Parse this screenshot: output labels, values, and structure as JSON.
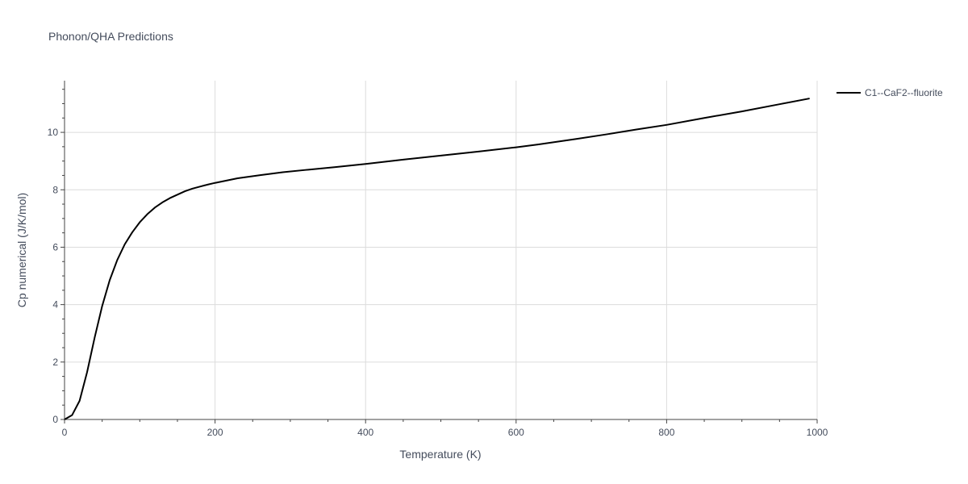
{
  "chart_data": {
    "type": "line",
    "title": "Phonon/QHA Predictions",
    "xlabel": "Temperature (K)",
    "ylabel": "Cp numerical (J/K/mol)",
    "xlim": [
      0,
      1000
    ],
    "ylim": [
      0,
      11.8
    ],
    "xticks": [
      0,
      200,
      400,
      600,
      800,
      1000
    ],
    "yticks": [
      0,
      2,
      4,
      6,
      8,
      10
    ],
    "grid": true,
    "legend_position": "top-right",
    "series": [
      {
        "name": "C1--CaF2--fluorite",
        "color": "#000000",
        "x": [
          0,
          10,
          20,
          30,
          40,
          50,
          60,
          70,
          80,
          90,
          100,
          110,
          120,
          130,
          140,
          150,
          160,
          170,
          180,
          190,
          200,
          230,
          260,
          290,
          320,
          360,
          400,
          450,
          500,
          550,
          600,
          630,
          680,
          720,
          760,
          800,
          850,
          900,
          950,
          990
        ],
        "y": [
          0,
          0.15,
          0.65,
          1.65,
          2.85,
          3.95,
          4.85,
          5.55,
          6.1,
          6.52,
          6.87,
          7.15,
          7.38,
          7.56,
          7.71,
          7.83,
          7.95,
          8.04,
          8.11,
          8.18,
          8.24,
          8.4,
          8.51,
          8.61,
          8.69,
          8.79,
          8.9,
          9.05,
          9.19,
          9.33,
          9.48,
          9.58,
          9.77,
          9.93,
          10.1,
          10.26,
          10.5,
          10.73,
          10.98,
          11.18
        ]
      }
    ]
  }
}
